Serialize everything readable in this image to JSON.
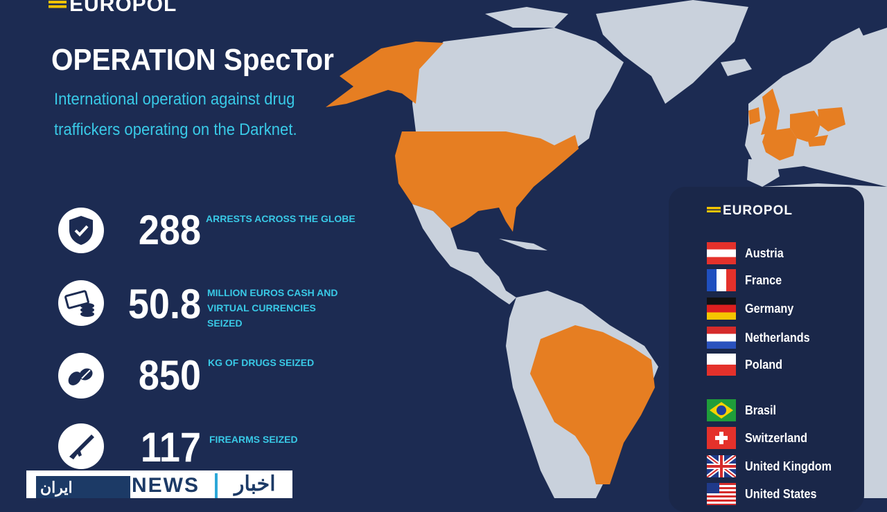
{
  "header": {
    "logo": "EUROPOL",
    "title": "OPERATION SpecTor",
    "subtitle": "International operation against drug traffickers operating on the Darknet."
  },
  "stats": [
    {
      "icon": "shield-check-icon",
      "value": "288",
      "label": "ARRESTS ACROSS THE GLOBE"
    },
    {
      "icon": "cash-coins-icon",
      "value": "50.8",
      "label": "MILLION EUROS CASH AND VIRTUAL CURRENCIES SEIZED"
    },
    {
      "icon": "pills-icon",
      "value": "850",
      "label": "KG OF DRUGS SEIZED"
    },
    {
      "icon": "rifle-icon",
      "value": "117",
      "label": "FIREARMS SEIZED"
    }
  ],
  "legend": {
    "logo": "EUROPOL",
    "countries": [
      {
        "name": "Austria",
        "flag": "austria-flag-icon"
      },
      {
        "name": "France",
        "flag": "france-flag-icon"
      },
      {
        "name": "Germany",
        "flag": "germany-flag-icon"
      },
      {
        "name": "Netherlands",
        "flag": "netherlands-flag-icon"
      },
      {
        "name": "Poland",
        "flag": "poland-flag-icon"
      },
      {
        "name": "Brasil",
        "flag": "brazil-flag-icon"
      },
      {
        "name": "Switzerland",
        "flag": "switzerland-flag-icon"
      },
      {
        "name": "United Kingdom",
        "flag": "uk-flag-icon"
      },
      {
        "name": "United States",
        "flag": "us-flag-icon"
      }
    ]
  },
  "news_bar": {
    "logo": "ايران",
    "label": "NEWS",
    "arabic": "اخبار"
  },
  "colors": {
    "background": "#1c2b52",
    "land": "#c9d1dc",
    "highlight": "#e67e22",
    "accent_text": "#39c9e6",
    "logo_mark": "#f2c300"
  }
}
